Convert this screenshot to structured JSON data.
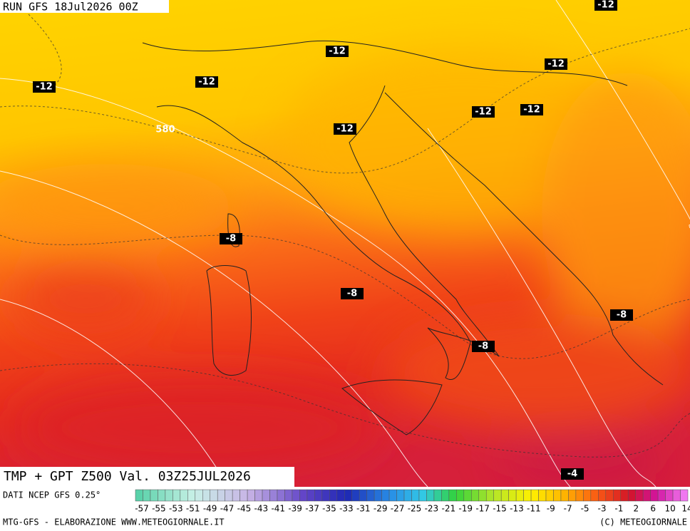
{
  "header": {
    "run": "RUN GFS 18Jul2026 00Z"
  },
  "map": {
    "contour_labels": [
      "-12",
      "-12",
      "-12",
      "-12",
      "-12",
      "-12",
      "-12",
      "-12",
      "580",
      "-8",
      "-8",
      "-8",
      "-8",
      "-4"
    ]
  },
  "title": "TMP + GPT Z500 Val. 03Z25JUL2026",
  "source": "DATI NCEP GFS 0.25°",
  "colorbar": {
    "labels": [
      "-57",
      "-55",
      "-53",
      "-51",
      "-49",
      "-47",
      "-45",
      "-43",
      "-41",
      "-39",
      "-37",
      "-35",
      "-33",
      "-31",
      "-29",
      "-27",
      "-25",
      "-23",
      "-21",
      "-19",
      "-17",
      "-15",
      "-13",
      "-11",
      "-9",
      "-7",
      "-5",
      "-3",
      "-1",
      "2",
      "6",
      "10",
      "14"
    ]
  },
  "footer": {
    "left": "MTG-GFS - ELABORAZIONE WWW.METEOGIORNALE.IT",
    "right": "(C) METEOGIORNALE"
  }
}
